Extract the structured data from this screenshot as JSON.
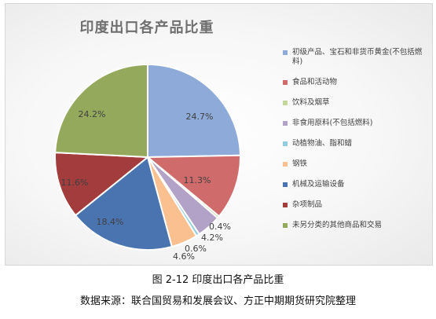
{
  "chart_data": {
    "type": "pie",
    "title": "印度出口各产品比重",
    "legend_position": "right",
    "slices": [
      {
        "name": "初级产品、宝石和非货币黄金(不包括燃料)",
        "value": 24.7,
        "label": "24.7%",
        "color": "#8eaad8"
      },
      {
        "name": "食品和活动物",
        "value": 11.3,
        "label": "11.3%",
        "color": "#d06b6b"
      },
      {
        "name": "饮料及烟草",
        "value": 0.4,
        "label": "0.4%",
        "color": "#c3d69b"
      },
      {
        "name": "非食用原料(不包括燃料)",
        "value": 4.2,
        "label": "4.2%",
        "color": "#b3a2c7"
      },
      {
        "name": "动植物油、脂和蜡",
        "value": 0.6,
        "label": "0.6%",
        "color": "#93cddd"
      },
      {
        "name": "钢铁",
        "value": 4.6,
        "label": "4.6%",
        "color": "#fac090"
      },
      {
        "name": "机械及运输设备",
        "value": 18.4,
        "label": "18.4%",
        "color": "#4a74b0"
      },
      {
        "name": "杂项制品",
        "value": 11.6,
        "label": "11.6%",
        "color": "#a33c3c"
      },
      {
        "name": "未另分类的其他商品和交易",
        "value": 24.2,
        "label": "24.2%",
        "color": "#94a95c"
      }
    ]
  },
  "caption": {
    "figure": "图 2-12  印度出口各产品比重",
    "source": "数据来源：联合国贸易和发展会议、方正中期期货研究院整理"
  }
}
